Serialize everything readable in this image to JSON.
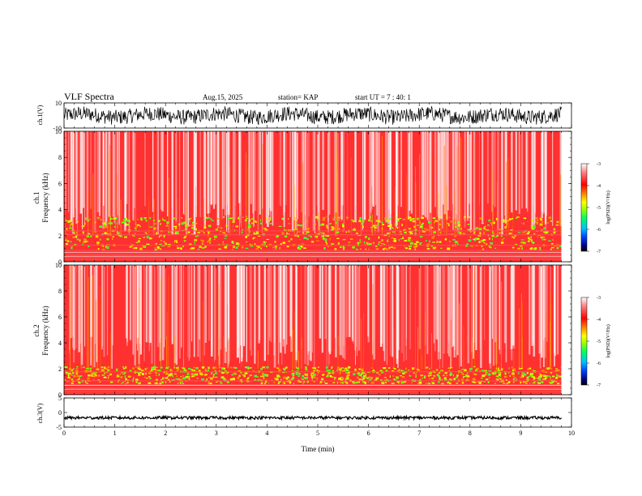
{
  "header": {
    "title": "VLF Spectra",
    "date": "Aug.15, 2025",
    "station": "station= KAP",
    "start_time": "start UT =  7 : 40: 1"
  },
  "axes": {
    "time_label": "Time (min)",
    "freq_label": "Frequency (kHz)",
    "ch1_wave_label": "ch.1(V)",
    "ch1_spec_label": "ch.1",
    "ch2_spec_label": "ch.2",
    "ch3_wave_label": "ch.3(V)",
    "colorbar_label": "log(PSD)(V²/Hz)"
  },
  "colors": {
    "colorbar": [
      "#000080",
      "#0040ff",
      "#00c0ff",
      "#00ff60",
      "#a0ff00",
      "#ffff00",
      "#ff8000",
      "#ff0000",
      "#ff8080",
      "#ffffff"
    ]
  },
  "chart_data": [
    {
      "type": "line",
      "panel": "ch1-waveform",
      "ylabel": "ch.1(V)",
      "ylim": [
        -10,
        10
      ],
      "yticks": [
        "10",
        "-10"
      ],
      "xlim": [
        0,
        10
      ],
      "note_values": "dense noise waveform roughly between -5 and 5 V over 0–9.8 min"
    },
    {
      "type": "heatmap",
      "panel": "ch1-spectrogram",
      "ylabel": "Frequency (kHz)",
      "channel": "ch.1",
      "ylim": [
        0,
        10
      ],
      "yticks": [
        "0",
        "2",
        "4",
        "6",
        "8",
        "10"
      ],
      "xlim": [
        0,
        10
      ],
      "data_end_min": 9.8,
      "colorbar": {
        "min": -7,
        "max": -3,
        "ticks": [
          "-3",
          "-4",
          "-5",
          "-6",
          "-7"
        ]
      }
    },
    {
      "type": "heatmap",
      "panel": "ch2-spectrogram",
      "ylabel": "Frequency (kHz)",
      "channel": "ch.2",
      "ylim": [
        0,
        10
      ],
      "yticks": [
        "0",
        "2",
        "4",
        "6",
        "8",
        "10"
      ],
      "xlim": [
        0,
        10
      ],
      "data_end_min": 9.8,
      "colorbar": {
        "min": -7,
        "max": -3,
        "ticks": [
          "-3",
          "-4",
          "-5",
          "-6",
          "-7"
        ]
      }
    },
    {
      "type": "line",
      "panel": "ch3-waveform",
      "ylabel": "ch.3(V)",
      "ylim": [
        -5,
        5
      ],
      "yticks": [
        "5",
        "0",
        "-5"
      ],
      "xlim": [
        0,
        10
      ],
      "note_values": "flat band near -1.8 V"
    }
  ],
  "xticks": [
    "0",
    "1",
    "2",
    "3",
    "4",
    "5",
    "6",
    "7",
    "8",
    "9",
    "10"
  ]
}
